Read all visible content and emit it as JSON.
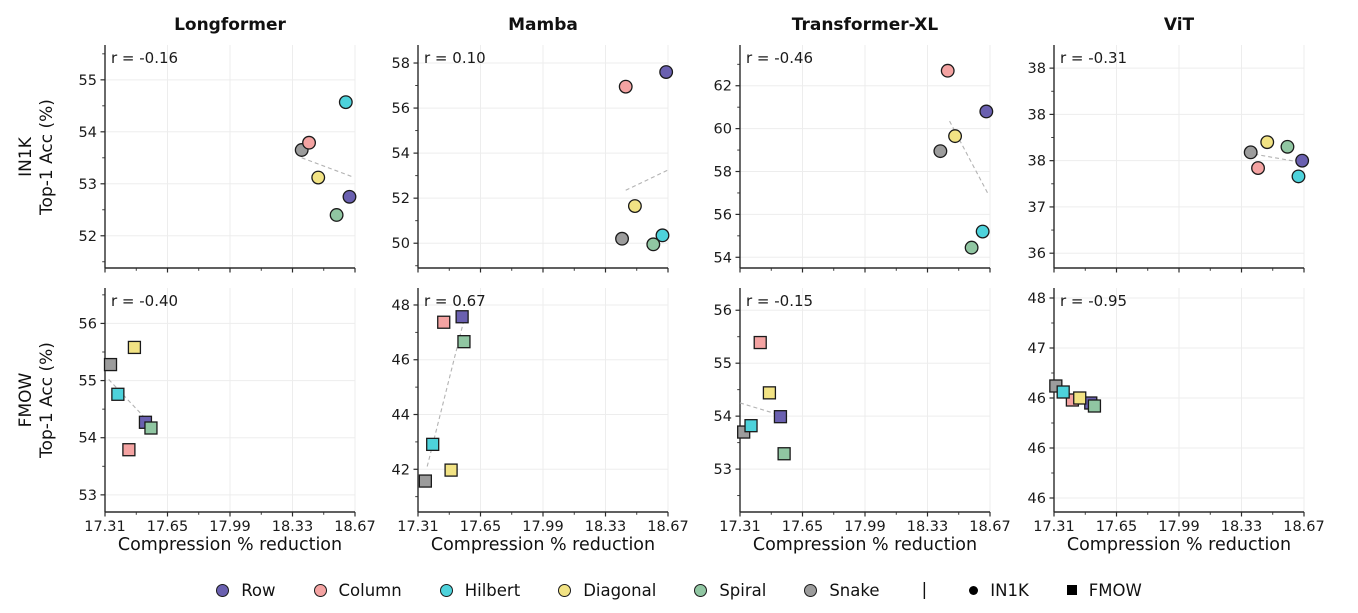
{
  "figure": {
    "column_titles": [
      "Longformer",
      "Mamba",
      "Transformer-XL",
      "ViT"
    ],
    "xlabel": "Compression % reduction",
    "row_labels": [
      {
        "line1": "IN1K",
        "line2": "Top-1 Acc (%)"
      },
      {
        "line1": "FMOW",
        "line2": "Top-1 Acc (%)"
      }
    ]
  },
  "legend": {
    "orders": [
      {
        "label": "Row",
        "color": "#6A60B0"
      },
      {
        "label": "Column",
        "color": "#F4A3A2"
      },
      {
        "label": "Hilbert",
        "color": "#4DD2DB"
      },
      {
        "label": "Diagonal",
        "color": "#F2E384"
      },
      {
        "label": "Spiral",
        "color": "#90C6A2"
      },
      {
        "label": "Snake",
        "color": "#9C9C9C"
      }
    ],
    "separator": "|",
    "datasets": [
      {
        "label": "IN1K",
        "marker": "circle"
      },
      {
        "label": "FMOW",
        "marker": "square"
      }
    ]
  },
  "chart_data": [
    {
      "type": "scatter",
      "model": "Longformer",
      "dataset": "IN1K",
      "marker": "circle",
      "r_text": "r = -0.16",
      "xlim": [
        17.31,
        18.67
      ],
      "ylim": [
        51.38,
        55.67
      ],
      "x_ticks": {
        "values": [
          17.31,
          17.65,
          17.99,
          18.33,
          18.67
        ],
        "labels": [
          "17.31",
          "17.65",
          "17.99",
          "18.33",
          "18.67"
        ]
      },
      "y_ticks": {
        "values": [
          52,
          53,
          54,
          55
        ],
        "labels": [
          "52",
          "53",
          "54",
          "55"
        ]
      },
      "points": [
        {
          "order": "Row",
          "x": 18.64,
          "y": 52.75
        },
        {
          "order": "Column",
          "x": 18.42,
          "y": 53.79
        },
        {
          "order": "Hilbert",
          "x": 18.62,
          "y": 54.57
        },
        {
          "order": "Diagonal",
          "x": 18.47,
          "y": 53.12
        },
        {
          "order": "Spiral",
          "x": 18.57,
          "y": 52.4
        },
        {
          "order": "Snake",
          "x": 18.38,
          "y": 53.65
        }
      ],
      "trend": [
        [
          18.38,
          53.5
        ],
        [
          18.66,
          53.13
        ]
      ]
    },
    {
      "type": "scatter",
      "model": "Mamba",
      "dataset": "IN1K",
      "marker": "circle",
      "r_text": "r = 0.10",
      "xlim": [
        17.31,
        18.67
      ],
      "ylim": [
        48.9,
        58.8
      ],
      "x_ticks": {
        "values": [
          17.31,
          17.65,
          17.99,
          18.33,
          18.67
        ],
        "labels": [
          "17.31",
          "17.65",
          "17.99",
          "18.33",
          "18.67"
        ]
      },
      "y_ticks": {
        "values": [
          50,
          52,
          54,
          56,
          58
        ],
        "labels": [
          "50",
          "52",
          "54",
          "56",
          "58"
        ]
      },
      "points": [
        {
          "order": "Row",
          "x": 18.66,
          "y": 57.6
        },
        {
          "order": "Column",
          "x": 18.44,
          "y": 56.95
        },
        {
          "order": "Hilbert",
          "x": 18.64,
          "y": 50.35
        },
        {
          "order": "Diagonal",
          "x": 18.49,
          "y": 51.65
        },
        {
          "order": "Spiral",
          "x": 18.59,
          "y": 49.95
        },
        {
          "order": "Snake",
          "x": 18.42,
          "y": 50.2
        }
      ],
      "trend": [
        [
          18.44,
          52.35
        ],
        [
          18.67,
          53.25
        ]
      ]
    },
    {
      "type": "scatter",
      "model": "Transformer-XL",
      "dataset": "IN1K",
      "marker": "circle",
      "r_text": "r = -0.46",
      "xlim": [
        17.31,
        18.67
      ],
      "ylim": [
        53.5,
        63.9
      ],
      "x_ticks": {
        "values": [
          17.31,
          17.65,
          17.99,
          18.33,
          18.67
        ],
        "labels": [
          "17.31",
          "17.65",
          "17.99",
          "18.33",
          "18.67"
        ]
      },
      "y_ticks": {
        "values": [
          54,
          56,
          58,
          60,
          62
        ],
        "labels": [
          "54",
          "56",
          "58",
          "60",
          "62"
        ]
      },
      "points": [
        {
          "order": "Row",
          "x": 18.65,
          "y": 60.8
        },
        {
          "order": "Column",
          "x": 18.44,
          "y": 62.7
        },
        {
          "order": "Hilbert",
          "x": 18.63,
          "y": 55.2
        },
        {
          "order": "Diagonal",
          "x": 18.48,
          "y": 59.65
        },
        {
          "order": "Spiral",
          "x": 18.57,
          "y": 54.45
        },
        {
          "order": "Snake",
          "x": 18.4,
          "y": 58.95
        }
      ],
      "trend": [
        [
          18.45,
          60.35
        ],
        [
          18.66,
          56.95
        ]
      ]
    },
    {
      "type": "scatter",
      "model": "ViT",
      "dataset": "IN1K",
      "marker": "circle",
      "r_text": "r = -0.31",
      "xlim": [
        17.31,
        18.67
      ],
      "ylim": [
        36.34,
        38.75
      ],
      "x_ticks": {
        "values": [
          17.31,
          17.65,
          17.99,
          18.33,
          18.67
        ],
        "labels": [
          "17.31",
          "17.65",
          "17.99",
          "18.33",
          "18.67"
        ]
      },
      "y_ticks": {
        "values": [
          36.5,
          37.0,
          37.5,
          38.0,
          38.5
        ],
        "labels": [
          "36",
          "37",
          "38",
          "38",
          "38"
        ]
      },
      "points": [
        {
          "order": "Row",
          "x": 18.66,
          "y": 37.5
        },
        {
          "order": "Column",
          "x": 18.42,
          "y": 37.42
        },
        {
          "order": "Hilbert",
          "x": 18.64,
          "y": 37.33
        },
        {
          "order": "Diagonal",
          "x": 18.47,
          "y": 37.7
        },
        {
          "order": "Spiral",
          "x": 18.58,
          "y": 37.65
        },
        {
          "order": "Snake",
          "x": 18.38,
          "y": 37.59
        }
      ],
      "trend": [
        [
          18.4,
          37.57
        ],
        [
          18.66,
          37.48
        ]
      ]
    },
    {
      "type": "scatter",
      "model": "Longformer",
      "dataset": "FMOW",
      "marker": "square",
      "r_text": "r = -0.40",
      "xlim": [
        17.31,
        18.67
      ],
      "ylim": [
        52.7,
        56.62
      ],
      "x_ticks": {
        "values": [
          17.31,
          17.65,
          17.99,
          18.33,
          18.67
        ],
        "labels": [
          "17.31",
          "17.65",
          "17.99",
          "18.33",
          "18.67"
        ]
      },
      "y_ticks": {
        "values": [
          53,
          54,
          55,
          56
        ],
        "labels": [
          "53",
          "54",
          "55",
          "56"
        ]
      },
      "points": [
        {
          "order": "Row",
          "x": 17.53,
          "y": 54.27
        },
        {
          "order": "Column",
          "x": 17.44,
          "y": 53.79
        },
        {
          "order": "Hilbert",
          "x": 17.38,
          "y": 54.76
        },
        {
          "order": "Diagonal",
          "x": 17.47,
          "y": 55.58
        },
        {
          "order": "Spiral",
          "x": 17.56,
          "y": 54.17
        },
        {
          "order": "Snake",
          "x": 17.34,
          "y": 55.28
        }
      ],
      "trend": [
        [
          17.33,
          55.02
        ],
        [
          17.57,
          54.2
        ]
      ]
    },
    {
      "type": "scatter",
      "model": "Mamba",
      "dataset": "FMOW",
      "marker": "square",
      "r_text": "r = 0.67",
      "xlim": [
        17.31,
        18.67
      ],
      "ylim": [
        40.44,
        48.62
      ],
      "x_ticks": {
        "values": [
          17.31,
          17.65,
          17.99,
          18.33,
          18.67
        ],
        "labels": [
          "17.31",
          "17.65",
          "17.99",
          "18.33",
          "18.67"
        ]
      },
      "y_ticks": {
        "values": [
          42,
          44,
          46,
          48
        ],
        "labels": [
          "42",
          "44",
          "46",
          "48"
        ]
      },
      "points": [
        {
          "order": "Row",
          "x": 17.55,
          "y": 47.57
        },
        {
          "order": "Column",
          "x": 17.45,
          "y": 47.37
        },
        {
          "order": "Hilbert",
          "x": 17.39,
          "y": 42.91
        },
        {
          "order": "Diagonal",
          "x": 17.49,
          "y": 41.97
        },
        {
          "order": "Spiral",
          "x": 17.56,
          "y": 46.66
        },
        {
          "order": "Snake",
          "x": 17.35,
          "y": 41.57
        }
      ],
      "trend": [
        [
          17.36,
          42.1
        ],
        [
          17.56,
          47.45
        ]
      ]
    },
    {
      "type": "scatter",
      "model": "Transformer-XL",
      "dataset": "FMOW",
      "marker": "square",
      "r_text": "r = -0.15",
      "xlim": [
        17.31,
        18.67
      ],
      "ylim": [
        52.19,
        56.42
      ],
      "x_ticks": {
        "values": [
          17.31,
          17.65,
          17.99,
          18.33,
          18.67
        ],
        "labels": [
          "17.31",
          "17.65",
          "17.99",
          "18.33",
          "18.67"
        ]
      },
      "y_ticks": {
        "values": [
          53,
          54,
          55,
          56
        ],
        "labels": [
          "53",
          "54",
          "55",
          "56"
        ]
      },
      "points": [
        {
          "order": "Row",
          "x": 17.53,
          "y": 53.99
        },
        {
          "order": "Column",
          "x": 17.42,
          "y": 55.39
        },
        {
          "order": "Hilbert",
          "x": 17.37,
          "y": 53.82
        },
        {
          "order": "Diagonal",
          "x": 17.47,
          "y": 54.44
        },
        {
          "order": "Spiral",
          "x": 17.55,
          "y": 53.29
        },
        {
          "order": "Snake",
          "x": 17.33,
          "y": 53.7
        }
      ],
      "trend": [
        [
          17.31,
          54.25
        ],
        [
          17.5,
          54.05
        ]
      ]
    },
    {
      "type": "scatter",
      "model": "ViT",
      "dataset": "FMOW",
      "marker": "square",
      "r_text": "r = -0.95",
      "xlim": [
        17.31,
        18.67
      ],
      "ylim": [
        45.36,
        47.6
      ],
      "x_ticks": {
        "values": [
          17.31,
          17.65,
          17.99,
          18.33,
          18.67
        ],
        "labels": [
          "17.31",
          "17.65",
          "17.99",
          "18.33",
          "18.67"
        ]
      },
      "y_ticks": {
        "values": [
          45.5,
          46.0,
          46.5,
          47.0,
          47.5
        ],
        "labels": [
          "46",
          "46",
          "46",
          "47",
          "48"
        ]
      },
      "points": [
        {
          "order": "Row",
          "x": 17.51,
          "y": 46.45
        },
        {
          "order": "Column",
          "x": 17.41,
          "y": 46.48
        },
        {
          "order": "Hilbert",
          "x": 17.36,
          "y": 46.56
        },
        {
          "order": "Diagonal",
          "x": 17.45,
          "y": 46.5
        },
        {
          "order": "Spiral",
          "x": 17.53,
          "y": 46.42
        },
        {
          "order": "Snake",
          "x": 17.32,
          "y": 46.62
        }
      ],
      "trend": [
        [
          17.31,
          46.62
        ],
        [
          17.55,
          46.4
        ]
      ]
    }
  ]
}
